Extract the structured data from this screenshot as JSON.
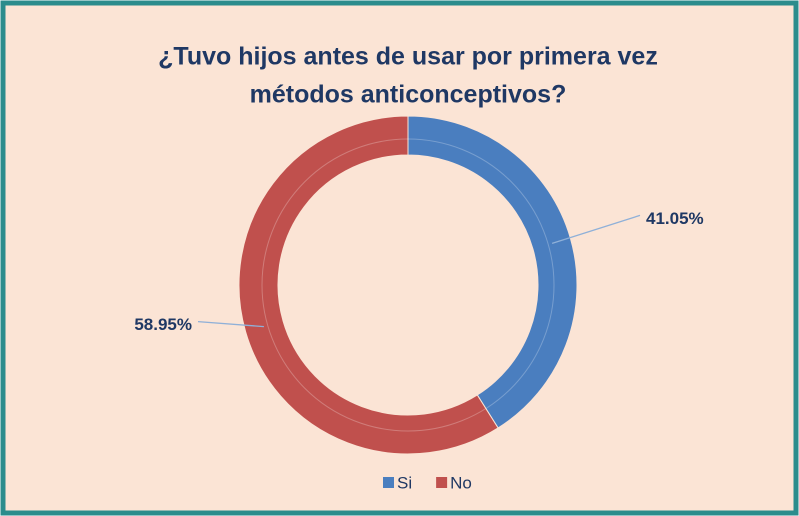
{
  "chart_data": {
    "type": "donut",
    "title": [
      "¿Tuvo hijos antes de usar por primera vez",
      "métodos anticonceptivos?"
    ],
    "categories": [
      "Si",
      "No"
    ],
    "values": [
      41.05,
      58.95
    ],
    "value_labels": [
      "41.05%",
      "58.95%"
    ],
    "colors": [
      "#4a7ebf",
      "#c0504d"
    ],
    "legend": "bottom"
  }
}
